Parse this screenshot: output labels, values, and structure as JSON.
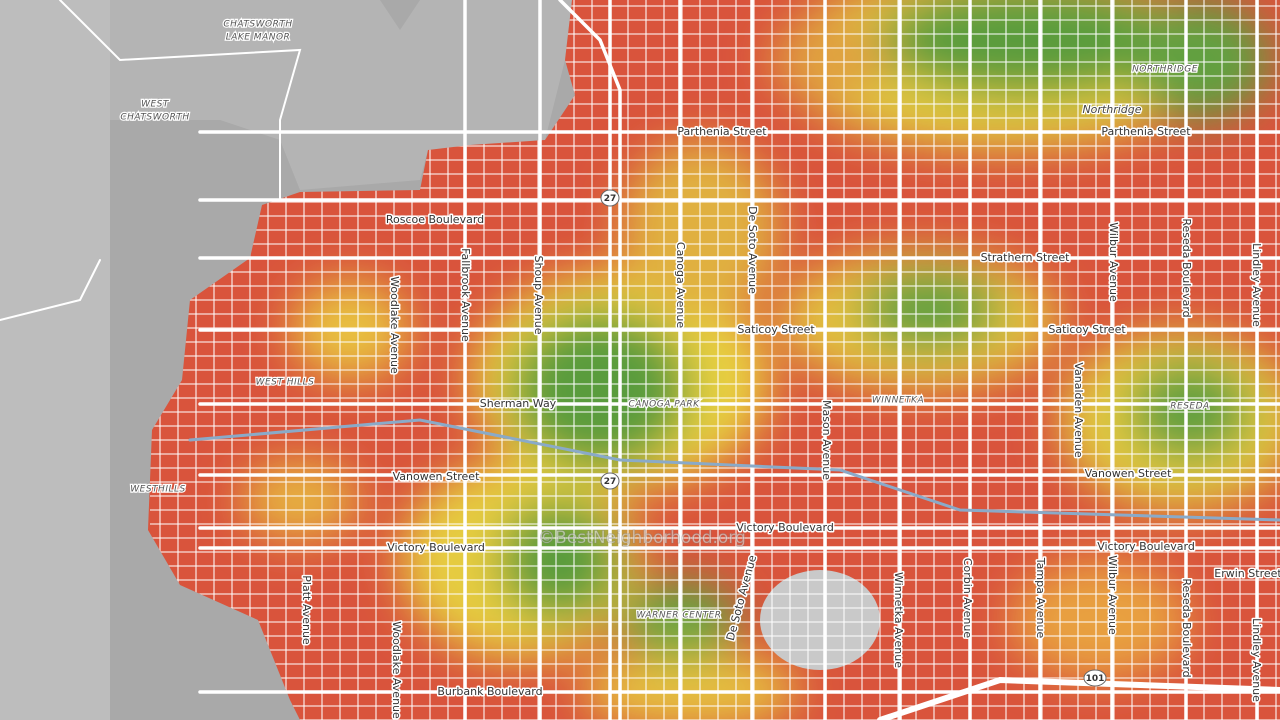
{
  "labels": [
    "CHATSWORTH",
    "LAKE MANOR",
    "WEST",
    "CHATSWORTH",
    "NORTHRIDGE",
    "Northridge",
    "Parthenia Street",
    "Parthenia Street",
    "Roscoe Boulevard",
    "De Soto Avenue",
    "Canoga Avenue",
    "Fallbrook Avenue",
    "Shoup Avenue",
    "Woodlake Avenue",
    "Strathern Street",
    "Wilbur Avenue",
    "Reseda Boulevard",
    "Lindley Avenue",
    "Saticoy Street",
    "Saticoy Street",
    "Vanalden Avenue",
    "WEST HILLS",
    "Sherman Way",
    "CANOGA PARK",
    "WINNETKA",
    "Mason Avenue",
    "RESEDA",
    "WESTHILLS",
    "Vanowen Street",
    "Vanowen Street",
    "Victory Boulevard",
    "Victory Boulevard",
    "Victory Boulevard",
    "Erwin Street",
    "©BestNeighborhood.org",
    "WARNER CENTER",
    "Platt Avenue",
    "De Soto Avenue",
    "Woodlake Avenue",
    "Winnetka Avenue",
    "Corbin Avenue",
    "Tampa Avenue",
    "Wilbur Avenue",
    "Reseda Boulevard",
    "Lindley Avenue",
    "Burbank Boulevard"
  ],
  "shields": [
    "27",
    "27",
    "101"
  ]
}
